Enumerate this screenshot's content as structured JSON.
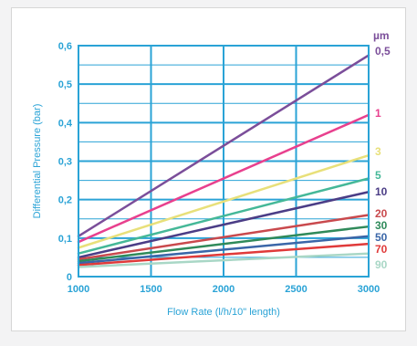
{
  "chart_data": {
    "type": "line",
    "xlabel": "Flow Rate (l/h/10\" length)",
    "ylabel": "Differential Pressure (bar)",
    "unit_label": "µm",
    "xlim": [
      1000,
      3000
    ],
    "ylim": [
      0,
      0.6
    ],
    "x_ticks": [
      "1000",
      "1500",
      "2000",
      "2500",
      "3000"
    ],
    "y_ticks": [
      "0",
      "0,1",
      "0,2",
      "0,3",
      "0,4",
      "0,5",
      "0,6"
    ],
    "grid": true,
    "x": [
      1000,
      3000
    ],
    "series": [
      {
        "name": "0,5",
        "color": "#7b4e9a",
        "values": [
          0.105,
          0.575
        ]
      },
      {
        "name": "1",
        "color": "#e8408e",
        "values": [
          0.09,
          0.42
        ]
      },
      {
        "name": "3",
        "color": "#e8e07a",
        "values": [
          0.075,
          0.315
        ]
      },
      {
        "name": "5",
        "color": "#45b898",
        "values": [
          0.06,
          0.255
        ]
      },
      {
        "name": "10",
        "color": "#4b3d86",
        "values": [
          0.05,
          0.22
        ]
      },
      {
        "name": "20",
        "color": "#c9494d",
        "values": [
          0.045,
          0.16
        ]
      },
      {
        "name": "30",
        "color": "#2f8a5a",
        "values": [
          0.04,
          0.13
        ]
      },
      {
        "name": "50",
        "color": "#3a66a8",
        "values": [
          0.035,
          0.105
        ]
      },
      {
        "name": "70",
        "color": "#e03a3a",
        "values": [
          0.03,
          0.085
        ]
      },
      {
        "name": "90",
        "color": "#a9d7c6",
        "values": [
          0.025,
          0.06
        ]
      }
    ]
  }
}
